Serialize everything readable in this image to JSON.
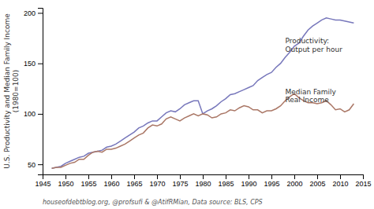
{
  "chart_data": {
    "type": "line",
    "ylabel": "U.S. Productivity and Median Family Income\n(1980=100)",
    "footnote": "houseofdebtblog.org, @profsufi & @AtifRMian, Data source: BLS, CPS",
    "xlim": [
      1945,
      2015
    ],
    "ylim": [
      40,
      205
    ],
    "xticks": [
      1945,
      1950,
      1955,
      1960,
      1965,
      1970,
      1975,
      1980,
      1985,
      1990,
      1995,
      2000,
      2005,
      2010,
      2015
    ],
    "yticks": [
      50,
      100,
      150,
      200
    ],
    "grid": false,
    "x": [
      1947,
      1948,
      1949,
      1950,
      1951,
      1952,
      1953,
      1954,
      1955,
      1956,
      1957,
      1958,
      1959,
      1960,
      1961,
      1962,
      1963,
      1964,
      1965,
      1966,
      1967,
      1968,
      1969,
      1970,
      1971,
      1972,
      1973,
      1974,
      1975,
      1976,
      1977,
      1978,
      1979,
      1980,
      1981,
      1982,
      1983,
      1984,
      1985,
      1986,
      1987,
      1988,
      1989,
      1990,
      1991,
      1992,
      1993,
      1994,
      1995,
      1996,
      1997,
      1998,
      1999,
      2000,
      2001,
      2002,
      2003,
      2004,
      2005,
      2006,
      2007,
      2008,
      2009,
      2010,
      2011,
      2012,
      2013
    ],
    "series": [
      {
        "color": "#7777bb",
        "values": [
          46,
          47,
          48,
          51,
          53,
          55,
          57,
          58,
          61,
          62,
          63,
          64,
          67,
          68,
          70,
          73,
          76,
          79,
          82,
          86,
          88,
          91,
          93,
          93,
          97,
          101,
          103,
          102,
          105,
          109,
          111,
          113,
          113,
          100,
          103,
          105,
          108,
          112,
          115,
          119,
          120,
          122,
          124,
          126,
          128,
          133,
          136,
          139,
          141,
          146,
          150,
          156,
          161,
          167,
          170,
          177,
          183,
          187,
          190,
          193,
          195,
          194,
          193,
          193,
          192,
          191,
          190
        ]
      },
      {
        "color": "#aa7766",
        "values": [
          46,
          47,
          47,
          49,
          51,
          52,
          55,
          55,
          59,
          62,
          63,
          62,
          65,
          65,
          66,
          68,
          70,
          73,
          76,
          79,
          81,
          86,
          89,
          88,
          90,
          95,
          97,
          95,
          93,
          96,
          98,
          100,
          98,
          100,
          99,
          96,
          97,
          100,
          101,
          104,
          103,
          106,
          108,
          107,
          104,
          104,
          101,
          103,
          103,
          105,
          108,
          113,
          117,
          120,
          116,
          113,
          111,
          111,
          110,
          111,
          113,
          109,
          104,
          105,
          102,
          104,
          110
        ]
      }
    ],
    "annotations": [
      {
        "text": "Productivity:\nOutput per hour",
        "x": 1998,
        "y": 168
      },
      {
        "text": "Median Family\nReal Income",
        "x": 1998,
        "y": 118
      }
    ]
  }
}
